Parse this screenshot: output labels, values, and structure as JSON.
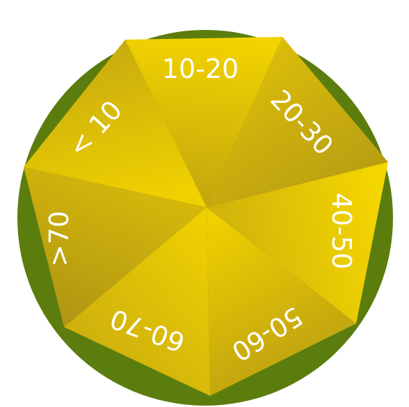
{
  "colors": {
    "rim": "#5b7d0d",
    "wedge_light": "#f4d400",
    "wedge_dark": "#b59a14",
    "label": "#ffffff"
  },
  "segments": [
    {
      "label": "10-20"
    },
    {
      "label": "20-30"
    },
    {
      "label": "40-50"
    },
    {
      "label": "50-60"
    },
    {
      "label": "60-70"
    },
    {
      "label": ">70"
    },
    {
      "label": "< 10"
    }
  ]
}
